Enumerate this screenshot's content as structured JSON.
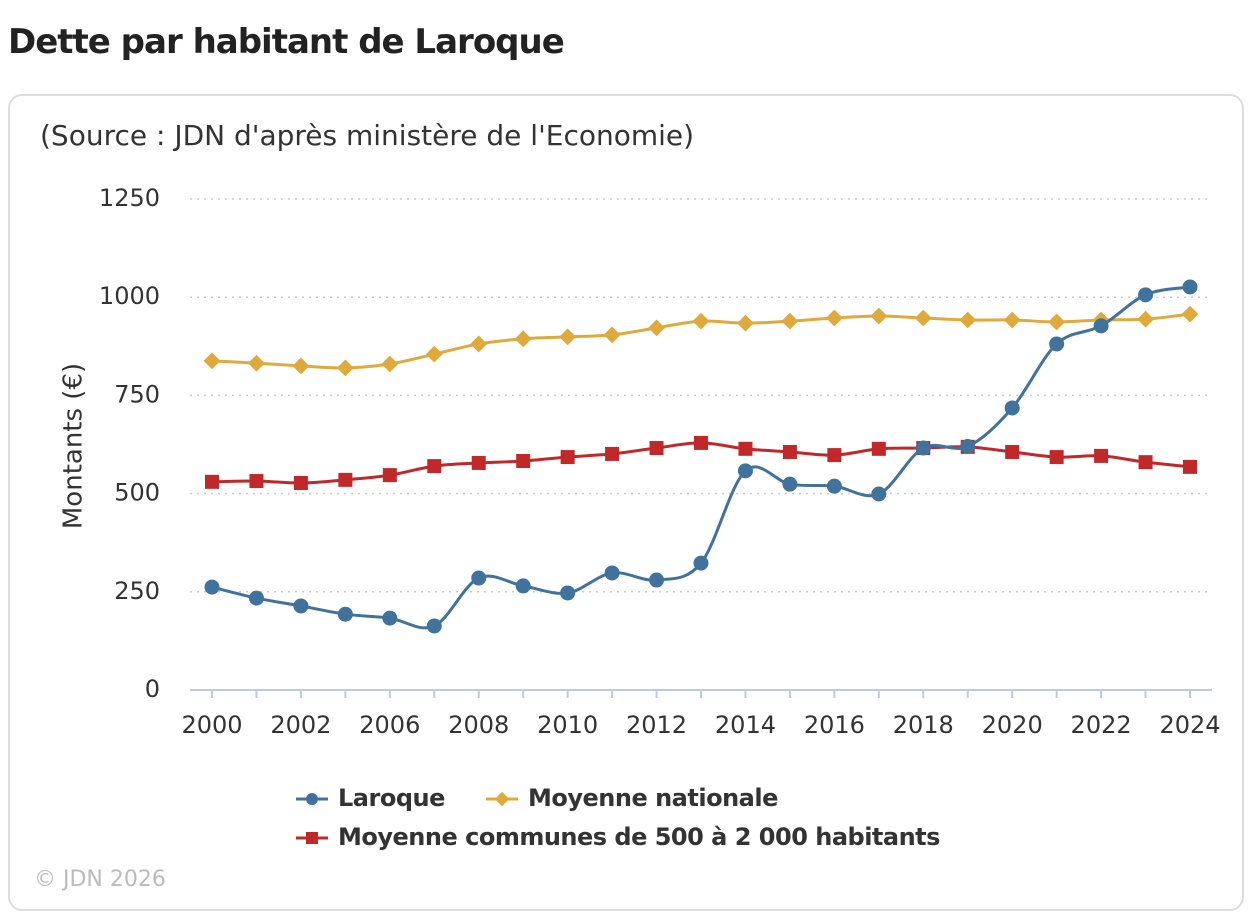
{
  "page_title": "Dette par habitant de Laroque",
  "footer": "© JDN 2026",
  "chart_data": {
    "type": "line",
    "title": "(Source : JDN d'après ministère de l'Economie)",
    "y_label": "Montants (€)",
    "categories": [
      "2000",
      null,
      "2002",
      null,
      "2006",
      null,
      "2008",
      null,
      "2010",
      null,
      "2012",
      null,
      "2014",
      null,
      "2016",
      null,
      "2018",
      null,
      "2020",
      null,
      "2022",
      null,
      "2024"
    ],
    "series": [
      {
        "name": "Laroque",
        "color": "#41729c",
        "marker": "circle",
        "values": [
          262,
          234,
          214,
          193,
          183,
          163,
          285,
          265,
          247,
          298,
          280,
          323,
          558,
          524,
          519,
          499,
          616,
          620,
          718,
          881,
          927,
          1006,
          1026
        ]
      },
      {
        "name": "Moyenne nationale",
        "color": "#e0a93b",
        "marker": "diamond",
        "values": [
          838,
          832,
          825,
          820,
          830,
          855,
          881,
          894,
          899,
          904,
          922,
          939,
          934,
          939,
          947,
          952,
          947,
          942,
          942,
          937,
          942,
          944,
          957
        ]
      },
      {
        "name": "Moyenne communes de 500 à 2 000 habitants",
        "color": "#c0282a",
        "marker": "square",
        "values": [
          530,
          532,
          527,
          535,
          547,
          570,
          578,
          583,
          593,
          601,
          616,
          629,
          614,
          606,
          598,
          614,
          616,
          619,
          606,
          593,
          596,
          580,
          568
        ]
      }
    ],
    "ylim": [
      0,
      1250
    ],
    "yticks": [
      0,
      250,
      500,
      750,
      1000,
      1250
    ],
    "grid": true
  }
}
